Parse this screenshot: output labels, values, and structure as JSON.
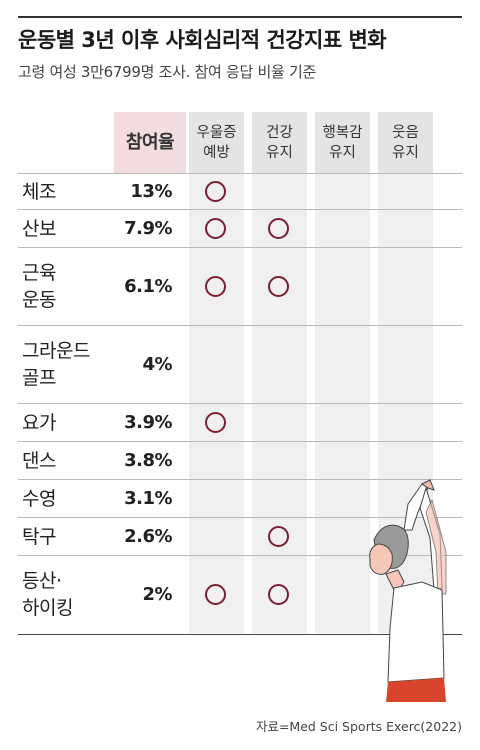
{
  "title": "운동별 3년 이후 사회심리적 건강지표 변화",
  "subtitle": "고령 여성 3만6799명 조사. 참여 응답 비율 기준",
  "source": "자료=Med Sci Sports Exerc(2022)",
  "colors": {
    "accent": "#7a1f33",
    "rate_header_bg": "#f3dde0",
    "column_bg": "#f0f0f0",
    "header_bg": "#e4e4e4"
  },
  "chart_data": {
    "type": "table",
    "columns": [
      "참여율",
      "우울증\n예방",
      "건강\n유지",
      "행복감\n유지",
      "웃음\n유지"
    ],
    "mark": "O",
    "rows": [
      {
        "sport": "체조",
        "rate": "13%",
        "marks": [
          true,
          false,
          false,
          false
        ]
      },
      {
        "sport": "산보",
        "rate": "7.9%",
        "marks": [
          true,
          true,
          false,
          false
        ]
      },
      {
        "sport": "근육\n운동",
        "rate": "6.1%",
        "marks": [
          true,
          true,
          false,
          false
        ]
      },
      {
        "sport": "그라운드\n골프",
        "rate": "4%",
        "marks": [
          false,
          false,
          false,
          false
        ]
      },
      {
        "sport": "요가",
        "rate": "3.9%",
        "marks": [
          true,
          false,
          false,
          false
        ]
      },
      {
        "sport": "댄스",
        "rate": "3.8%",
        "marks": [
          false,
          false,
          false,
          false
        ]
      },
      {
        "sport": "수영",
        "rate": "3.1%",
        "marks": [
          false,
          false,
          false,
          false
        ]
      },
      {
        "sport": "탁구",
        "rate": "2.6%",
        "marks": [
          false,
          true,
          false,
          false
        ]
      },
      {
        "sport": "등산·\n하이킹",
        "rate": "2%",
        "marks": [
          true,
          true,
          false,
          false
        ]
      }
    ]
  }
}
